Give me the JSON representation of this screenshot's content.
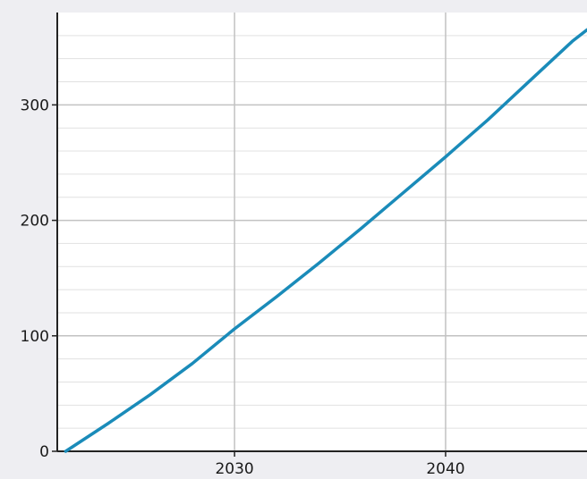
{
  "chart_data": {
    "type": "line",
    "title": "",
    "xlabel": "",
    "ylabel": "",
    "xlim": [
      2021.6,
      2046.7
    ],
    "ylim": [
      0,
      380
    ],
    "x_ticks": [
      2030,
      2040
    ],
    "y_ticks": [
      0,
      100,
      200,
      300
    ],
    "grid": true,
    "legend": "none",
    "series": [
      {
        "color": "#1a8bb9",
        "x": [
          2022,
          2024,
          2026,
          2028,
          2030,
          2032,
          2034,
          2036,
          2038,
          2040,
          2042,
          2044,
          2046,
          2046.7
        ],
        "y": [
          0,
          24,
          49,
          76,
          106,
          134,
          163,
          193,
          224,
          255,
          287,
          321,
          355,
          365
        ]
      }
    ]
  },
  "colors": {
    "background": "#eeeef2",
    "plot_area": "#ffffff",
    "major_grid": "#c2c2c2",
    "minor_grid": "#e1e1e1",
    "axis": "#222222",
    "line": "#1a8bb9"
  }
}
